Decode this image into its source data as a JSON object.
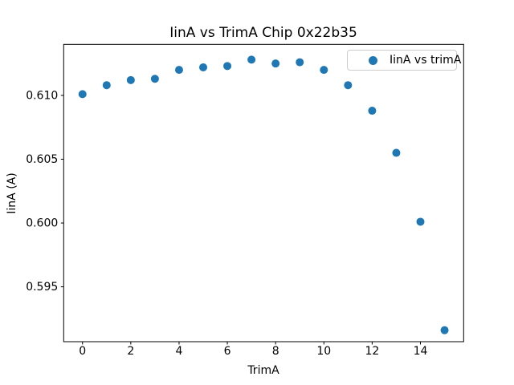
{
  "figure": {
    "title": "IinA vs TrimA Chip 0x22b35"
  },
  "chart_data": {
    "type": "scatter",
    "title": "IinA vs TrimA Chip 0x22b35",
    "xlabel": "TrimA",
    "ylabel": "IinA (A)",
    "legend": {
      "entries": [
        "IinA vs trimA"
      ],
      "position": "upper right"
    },
    "series": [
      {
        "name": "IinA vs trimA",
        "color": "#1f77b4",
        "x": [
          0,
          1,
          2,
          3,
          4,
          5,
          6,
          7,
          8,
          9,
          10,
          11,
          12,
          13,
          14,
          15
        ],
        "y": [
          0.6101,
          0.6108,
          0.6112,
          0.6113,
          0.612,
          0.6122,
          0.6123,
          0.6128,
          0.6125,
          0.6126,
          0.612,
          0.6108,
          0.6088,
          0.6055,
          0.6001,
          0.5916
        ]
      }
    ],
    "xlim": [
      -0.78,
      15.79
    ],
    "ylim": [
      0.5907,
      0.614
    ],
    "xticks": [
      0,
      2,
      4,
      6,
      8,
      10,
      12,
      14
    ],
    "xtick_labels": [
      "0",
      "2",
      "4",
      "6",
      "8",
      "10",
      "12",
      "14"
    ],
    "yticks": [
      0.595,
      0.6,
      0.605,
      0.61
    ],
    "ytick_labels": [
      "0.595",
      "0.600",
      "0.605",
      "0.610"
    ],
    "grid": false,
    "marker": {
      "shape": "circle",
      "radius_px": 5
    },
    "colors": {
      "marker": "#1f77b4",
      "axes": "#000000",
      "text": "#000000",
      "legend_border": "#cccccc",
      "background": "#ffffff"
    }
  }
}
